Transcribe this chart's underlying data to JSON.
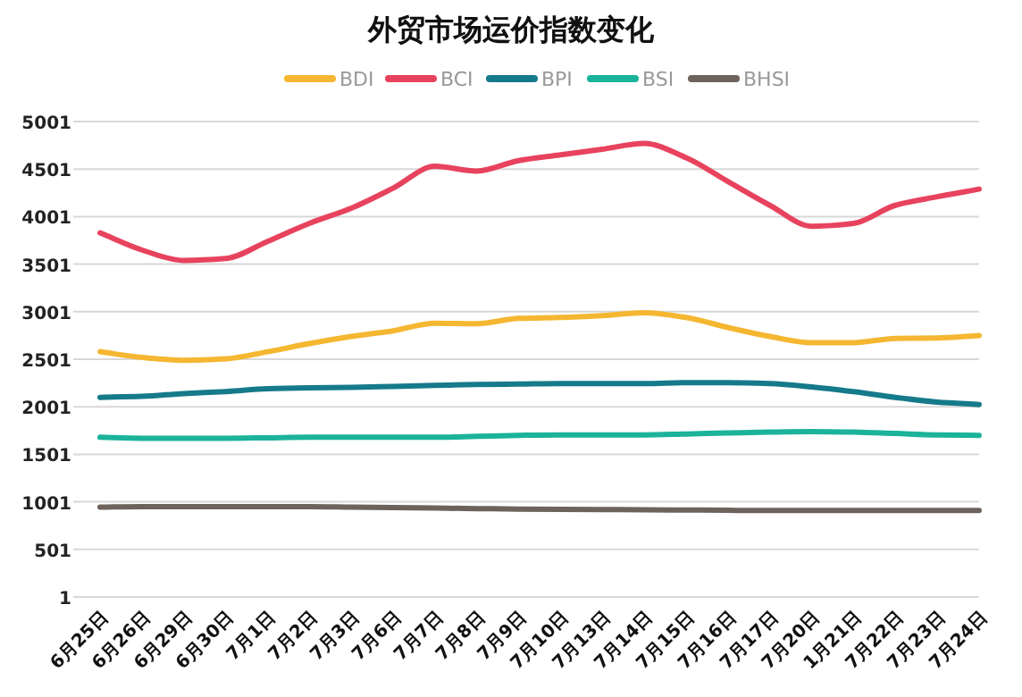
{
  "chart_data": {
    "type": "line",
    "title": "外贸市场运价指数变化",
    "categories": [
      "6月25日",
      "6月26日",
      "6月29日",
      "6月30日",
      "7月1日",
      "7月2日",
      "7月3日",
      "7月6日",
      "7月7日",
      "7月8日",
      "7月9日",
      "7月10日",
      "7月13日",
      "7月14日",
      "7月15日",
      "7月16日",
      "7月17日",
      "7月20日",
      "1月21日",
      "7月22日",
      "7月23日",
      "7月24日"
    ],
    "series": [
      {
        "name": "BDI",
        "color": "#f5b731",
        "values": [
          2580,
          2520,
          2490,
          2505,
          2580,
          2665,
          2740,
          2800,
          2880,
          2875,
          2930,
          2940,
          2960,
          2990,
          2940,
          2835,
          2740,
          2675,
          2675,
          2720,
          2725,
          2750
        ]
      },
      {
        "name": "BCI",
        "color": "#e8435e",
        "values": [
          3830,
          3650,
          3540,
          3560,
          3740,
          3930,
          4090,
          4300,
          4530,
          4480,
          4590,
          4650,
          4710,
          4770,
          4620,
          4370,
          4120,
          3900,
          3930,
          4120,
          4210,
          4290
        ]
      },
      {
        "name": "BPI",
        "color": "#157a8a",
        "values": [
          2100,
          2110,
          2140,
          2160,
          2190,
          2200,
          2205,
          2215,
          2225,
          2235,
          2240,
          2245,
          2245,
          2245,
          2255,
          2255,
          2245,
          2210,
          2160,
          2100,
          2050,
          2025
        ]
      },
      {
        "name": "BSI",
        "color": "#1bb39a",
        "values": [
          1680,
          1670,
          1670,
          1670,
          1675,
          1680,
          1680,
          1680,
          1680,
          1690,
          1700,
          1705,
          1705,
          1705,
          1715,
          1725,
          1735,
          1740,
          1735,
          1720,
          1705,
          1700
        ]
      },
      {
        "name": "BHSI",
        "color": "#6e625c",
        "values": [
          945,
          950,
          950,
          950,
          950,
          950,
          945,
          940,
          935,
          930,
          925,
          922,
          920,
          918,
          915,
          912,
          910,
          910,
          910,
          910,
          910,
          910
        ]
      }
    ],
    "ylim": [
      1,
      5001
    ],
    "yticks": [
      1,
      501,
      1001,
      1501,
      2001,
      2501,
      3001,
      3501,
      4001,
      4501,
      5001
    ],
    "grid": "y",
    "legend": "top",
    "line_style": "solid"
  }
}
